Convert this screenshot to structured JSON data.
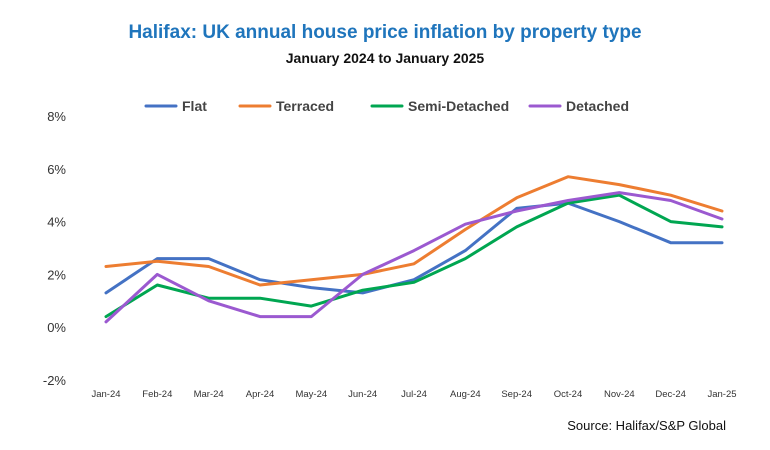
{
  "chart_data": {
    "type": "line",
    "title": "Halifax: UK annual house price inflation by property type",
    "subtitle": "January 2024 to January 2025",
    "source": "Source: Halifax/S&P Global",
    "categories": [
      "Jan-24",
      "Feb-24",
      "Mar-24",
      "Apr-24",
      "May-24",
      "Jun-24",
      "Jul-24",
      "Aug-24",
      "Sep-24",
      "Oct-24",
      "Nov-24",
      "Dec-24",
      "Jan-25"
    ],
    "ylim": [
      -2,
      8
    ],
    "yticks": [
      -2,
      0,
      2,
      4,
      6,
      8
    ],
    "ytick_labels": [
      "-2%",
      "0%",
      "2%",
      "4%",
      "6%",
      "8%"
    ],
    "xlabel": "",
    "ylabel": "",
    "legend_position": "top",
    "series": [
      {
        "name": "Flat",
        "color": "#4472C4",
        "values": [
          1.3,
          2.6,
          2.6,
          1.8,
          1.5,
          1.3,
          1.8,
          2.9,
          4.5,
          4.7,
          4.0,
          3.2,
          3.2
        ]
      },
      {
        "name": "Terraced",
        "color": "#ED7D31",
        "values": [
          2.3,
          2.5,
          2.3,
          1.6,
          1.8,
          2.0,
          2.4,
          3.7,
          4.9,
          5.7,
          5.4,
          5.0,
          4.4
        ]
      },
      {
        "name": "Semi-Detached",
        "color": "#00A651",
        "values": [
          0.4,
          1.6,
          1.1,
          1.1,
          0.8,
          1.4,
          1.7,
          2.6,
          3.8,
          4.7,
          5.0,
          4.0,
          3.8
        ]
      },
      {
        "name": "Detached",
        "color": "#9B59D0",
        "values": [
          0.2,
          2.0,
          1.0,
          0.4,
          0.4,
          2.0,
          2.9,
          3.9,
          4.4,
          4.8,
          5.1,
          4.8,
          4.1
        ]
      }
    ]
  },
  "colors": {
    "title": "#1F75BC"
  }
}
